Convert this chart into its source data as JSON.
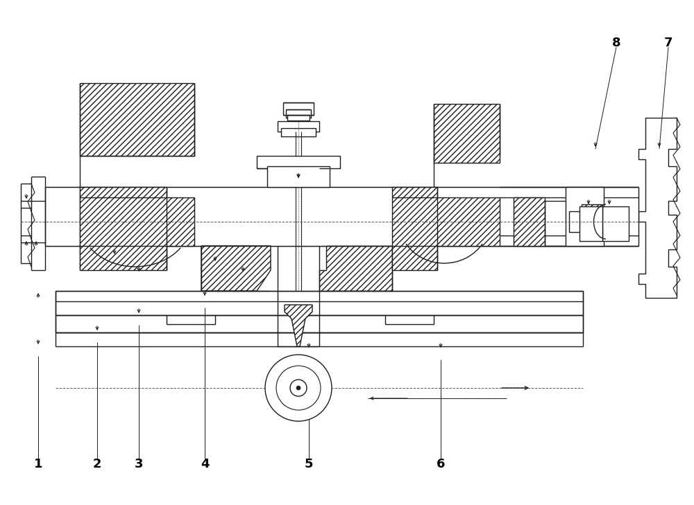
{
  "bg_color": "#ffffff",
  "lc": "#1a1a1a",
  "lw": 1.0,
  "fig_width": 10.0,
  "fig_height": 7.29,
  "label_fontsize": 13
}
